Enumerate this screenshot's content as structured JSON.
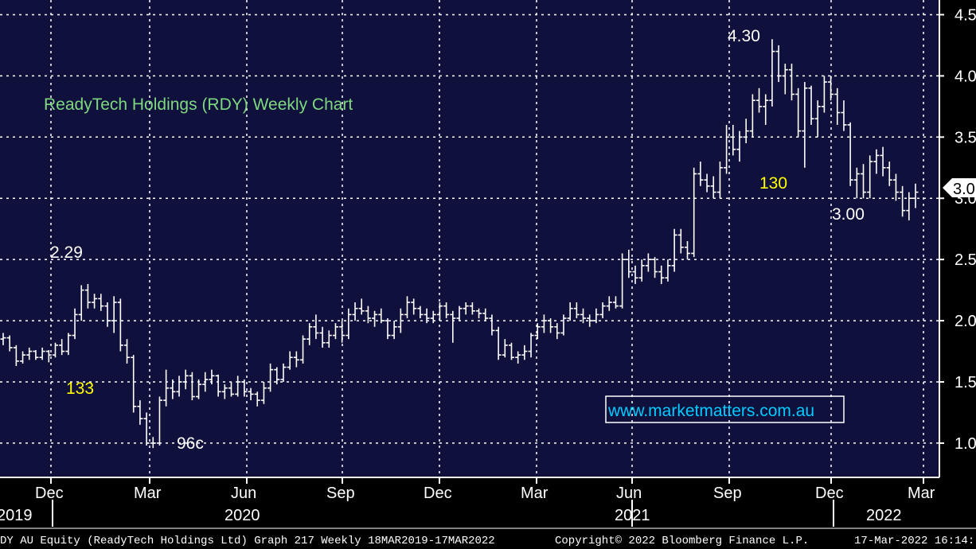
{
  "chart_data": {
    "type": "ohlc",
    "title": "ReadyTech Holdings (RDY) Weekly Chart",
    "watermark": "www.marketmatters.com.au",
    "ylim": [
      0.72,
      4.62
    ],
    "y_ticks": [
      "1.0",
      "1.5",
      "2.0",
      "2.5",
      "3.0",
      "3.5",
      "4.0",
      "4.5"
    ],
    "last_price_label": "3.0",
    "x_month_labels": [
      "Dec",
      "Mar",
      "Jun",
      "Sep",
      "Dec",
      "Mar",
      "Jun",
      "Sep",
      "Dec",
      "Mar"
    ],
    "x_year_labels": [
      "2019",
      "2020",
      "2021",
      "2022"
    ],
    "annotations": [
      {
        "text": "2.29",
        "color": "#ffffff"
      },
      {
        "text": "133",
        "color": "#ffff00"
      },
      {
        "text": "96c",
        "color": "#ffffff"
      },
      {
        "text": "4.30",
        "color": "#ffffff"
      },
      {
        "text": "130",
        "color": "#ffff00"
      },
      {
        "text": "3.00",
        "color": "#ffffff"
      }
    ],
    "series": [
      {
        "values": [
          [
            1.85,
            1.9,
            1.8,
            1.86
          ],
          [
            1.86,
            1.88,
            1.75,
            1.78
          ],
          [
            1.78,
            1.8,
            1.63,
            1.67
          ],
          [
            1.67,
            1.75,
            1.65,
            1.72
          ],
          [
            1.72,
            1.78,
            1.68,
            1.75
          ],
          [
            1.75,
            1.76,
            1.68,
            1.7
          ],
          [
            1.7,
            1.78,
            1.68,
            1.75
          ],
          [
            1.75,
            1.76,
            1.66,
            1.72
          ],
          [
            1.72,
            1.82,
            1.7,
            1.8
          ],
          [
            1.8,
            1.85,
            1.72,
            1.75
          ],
          [
            1.75,
            1.9,
            1.72,
            1.88
          ],
          [
            1.88,
            2.1,
            1.85,
            2.05
          ],
          [
            2.05,
            2.29,
            2.0,
            2.25
          ],
          [
            2.25,
            2.3,
            2.1,
            2.15
          ],
          [
            2.15,
            2.22,
            2.1,
            2.18
          ],
          [
            2.18,
            2.22,
            2.08,
            2.12
          ],
          [
            2.12,
            2.15,
            1.95,
            2.0
          ],
          [
            2.0,
            2.2,
            1.9,
            2.15
          ],
          [
            2.15,
            2.18,
            1.75,
            1.8
          ],
          [
            1.8,
            1.85,
            1.65,
            1.7
          ],
          [
            1.7,
            1.72,
            1.25,
            1.3
          ],
          [
            1.3,
            1.35,
            1.15,
            1.2
          ],
          [
            1.2,
            1.25,
            0.98,
            1.0
          ],
          [
            1.0,
            1.05,
            0.96,
            1.0
          ],
          [
            1.0,
            1.38,
            0.98,
            1.35
          ],
          [
            1.35,
            1.6,
            1.3,
            1.45
          ],
          [
            1.45,
            1.52,
            1.36,
            1.42
          ],
          [
            1.42,
            1.55,
            1.38,
            1.5
          ],
          [
            1.5,
            1.6,
            1.44,
            1.55
          ],
          [
            1.55,
            1.58,
            1.35,
            1.38
          ],
          [
            1.38,
            1.52,
            1.36,
            1.48
          ],
          [
            1.48,
            1.58,
            1.42,
            1.52
          ],
          [
            1.52,
            1.6,
            1.48,
            1.55
          ],
          [
            1.55,
            1.56,
            1.38,
            1.42
          ],
          [
            1.42,
            1.48,
            1.36,
            1.45
          ],
          [
            1.45,
            1.5,
            1.38,
            1.4
          ],
          [
            1.4,
            1.55,
            1.38,
            1.5
          ],
          [
            1.5,
            1.52,
            1.38,
            1.42
          ],
          [
            1.42,
            1.45,
            1.35,
            1.4
          ],
          [
            1.4,
            1.42,
            1.3,
            1.35
          ],
          [
            1.35,
            1.5,
            1.32,
            1.45
          ],
          [
            1.45,
            1.65,
            1.42,
            1.6
          ],
          [
            1.6,
            1.62,
            1.48,
            1.52
          ],
          [
            1.52,
            1.65,
            1.5,
            1.62
          ],
          [
            1.62,
            1.75,
            1.6,
            1.7
          ],
          [
            1.7,
            1.75,
            1.62,
            1.68
          ],
          [
            1.68,
            1.88,
            1.65,
            1.85
          ],
          [
            1.85,
            1.98,
            1.8,
            1.95
          ],
          [
            1.95,
            2.05,
            1.85,
            1.9
          ],
          [
            1.9,
            1.95,
            1.78,
            1.82
          ],
          [
            1.82,
            1.92,
            1.78,
            1.88
          ],
          [
            1.88,
            1.98,
            1.85,
            1.95
          ],
          [
            1.95,
            2.0,
            1.82,
            1.88
          ],
          [
            1.88,
            2.1,
            1.85,
            2.05
          ],
          [
            2.05,
            2.15,
            2.0,
            2.1
          ],
          [
            2.1,
            2.18,
            2.05,
            2.08
          ],
          [
            2.08,
            2.12,
            1.98,
            2.02
          ],
          [
            2.02,
            2.08,
            1.95,
            2.05
          ],
          [
            2.05,
            2.1,
            1.98,
            2.0
          ],
          [
            2.0,
            2.02,
            1.85,
            1.88
          ],
          [
            1.88,
            2.0,
            1.85,
            1.95
          ],
          [
            1.95,
            2.1,
            1.9,
            2.05
          ],
          [
            2.05,
            2.2,
            2.02,
            2.15
          ],
          [
            2.15,
            2.18,
            2.05,
            2.1
          ],
          [
            2.1,
            2.12,
            2.02,
            2.05
          ],
          [
            2.05,
            2.1,
            1.98,
            2.02
          ],
          [
            2.02,
            2.08,
            1.98,
            2.05
          ],
          [
            2.05,
            2.15,
            2.0,
            2.12
          ],
          [
            2.12,
            2.15,
            2.02,
            2.05
          ],
          [
            2.05,
            2.08,
            1.82,
            2.02
          ],
          [
            2.02,
            2.12,
            2.0,
            2.1
          ],
          [
            2.1,
            2.15,
            2.05,
            2.12
          ],
          [
            2.12,
            2.15,
            2.05,
            2.08
          ],
          [
            2.08,
            2.1,
            2.02,
            2.06
          ],
          [
            2.06,
            2.1,
            2.0,
            2.02
          ],
          [
            2.02,
            2.05,
            1.88,
            1.92
          ],
          [
            1.92,
            1.95,
            1.68,
            1.72
          ],
          [
            1.72,
            1.85,
            1.7,
            1.8
          ],
          [
            1.8,
            1.82,
            1.68,
            1.7
          ],
          [
            1.7,
            1.75,
            1.65,
            1.72
          ],
          [
            1.72,
            1.8,
            1.68,
            1.75
          ],
          [
            1.75,
            1.9,
            1.7,
            1.88
          ],
          [
            1.88,
            1.98,
            1.85,
            1.95
          ],
          [
            1.95,
            2.05,
            1.9,
            2.0
          ],
          [
            2.0,
            2.02,
            1.9,
            1.95
          ],
          [
            1.95,
            1.98,
            1.85,
            1.9
          ],
          [
            1.9,
            2.05,
            1.88,
            2.02
          ],
          [
            2.02,
            2.15,
            2.0,
            2.1
          ],
          [
            2.1,
            2.15,
            2.02,
            2.05
          ],
          [
            2.05,
            2.1,
            1.98,
            2.02
          ],
          [
            2.02,
            2.05,
            1.95,
            2.0
          ],
          [
            2.0,
            2.1,
            1.98,
            2.05
          ],
          [
            2.05,
            2.15,
            2.02,
            2.12
          ],
          [
            2.12,
            2.2,
            2.08,
            2.15
          ],
          [
            2.15,
            2.2,
            2.1,
            2.12
          ],
          [
            2.12,
            2.55,
            2.1,
            2.5
          ],
          [
            2.5,
            2.58,
            2.35,
            2.4
          ],
          [
            2.4,
            2.45,
            2.3,
            2.35
          ],
          [
            2.35,
            2.5,
            2.32,
            2.45
          ],
          [
            2.45,
            2.55,
            2.4,
            2.5
          ],
          [
            2.5,
            2.52,
            2.35,
            2.4
          ],
          [
            2.4,
            2.45,
            2.3,
            2.35
          ],
          [
            2.35,
            2.5,
            2.32,
            2.45
          ],
          [
            2.45,
            2.75,
            2.4,
            2.7
          ],
          [
            2.7,
            2.75,
            2.55,
            2.6
          ],
          [
            2.6,
            2.65,
            2.5,
            2.55
          ],
          [
            2.55,
            3.25,
            2.52,
            3.2
          ],
          [
            3.2,
            3.3,
            3.1,
            3.15
          ],
          [
            3.15,
            3.2,
            3.05,
            3.1
          ],
          [
            3.1,
            3.18,
            3.0,
            3.05
          ],
          [
            3.05,
            3.3,
            3.0,
            3.25
          ],
          [
            3.25,
            3.6,
            3.2,
            3.5
          ],
          [
            3.5,
            3.6,
            3.35,
            3.4
          ],
          [
            3.4,
            3.55,
            3.3,
            3.5
          ],
          [
            3.5,
            3.65,
            3.45,
            3.55
          ],
          [
            3.55,
            3.85,
            3.5,
            3.8
          ],
          [
            3.8,
            3.9,
            3.7,
            3.75
          ],
          [
            3.75,
            3.85,
            3.6,
            3.8
          ],
          [
            3.8,
            4.3,
            3.75,
            4.2
          ],
          [
            4.2,
            4.25,
            3.95,
            4.0
          ],
          [
            4.0,
            4.1,
            3.85,
            4.05
          ],
          [
            4.05,
            4.1,
            3.8,
            3.85
          ],
          [
            3.85,
            3.9,
            3.5,
            3.55
          ],
          [
            3.55,
            3.95,
            3.25,
            3.9
          ],
          [
            3.9,
            3.92,
            3.6,
            3.65
          ],
          [
            3.65,
            3.8,
            3.5,
            3.75
          ],
          [
            3.75,
            4.0,
            3.7,
            3.95
          ],
          [
            3.95,
            4.0,
            3.8,
            3.85
          ],
          [
            3.85,
            3.9,
            3.6,
            3.7
          ],
          [
            3.7,
            3.8,
            3.55,
            3.6
          ],
          [
            3.6,
            3.62,
            3.1,
            3.15
          ],
          [
            3.15,
            3.25,
            3.0,
            3.2
          ],
          [
            3.2,
            3.28,
            3.0,
            3.05
          ],
          [
            3.05,
            3.35,
            3.0,
            3.3
          ],
          [
            3.3,
            3.4,
            3.2,
            3.35
          ],
          [
            3.35,
            3.42,
            3.18,
            3.25
          ],
          [
            3.25,
            3.3,
            3.1,
            3.15
          ],
          [
            3.15,
            3.2,
            2.98,
            3.05
          ],
          [
            3.05,
            3.1,
            2.85,
            2.9
          ],
          [
            2.9,
            3.05,
            2.82,
            3.0
          ],
          [
            3.0,
            3.12,
            2.92,
            3.05
          ]
        ]
      }
    ]
  },
  "footer": {
    "left": "DY AU Equity (ReadyTech Holdings Ltd) Graph 217  Weekly 18MAR2019-17MAR2022",
    "center": "Copyright© 2022 Bloomberg Finance L.P.",
    "right": "17-Mar-2022 16:14:"
  },
  "colors": {
    "plot_bg": "#10103d",
    "grid": "#ffffff",
    "bars": "#ffffff",
    "title": "#7fd87f",
    "watermark": "#00ccff",
    "highlight": "#ffff00"
  }
}
